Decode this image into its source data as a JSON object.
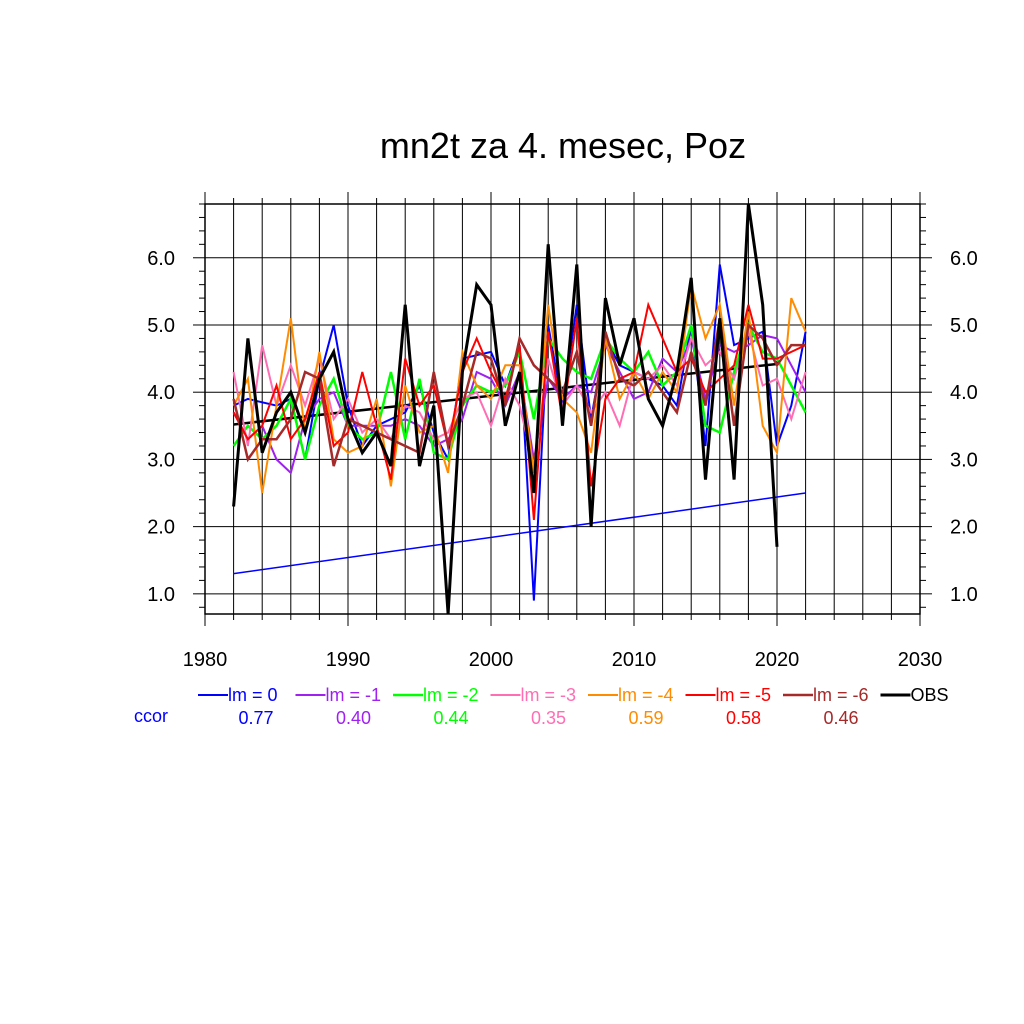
{
  "chart_data": {
    "type": "line",
    "title": "mn2t za 4. mesec, Poz",
    "xlabel": "",
    "ylabel": "",
    "xlim": [
      1980,
      2030
    ],
    "ylim": [
      0.7,
      6.8
    ],
    "x_ticks": [
      1980,
      1990,
      2000,
      2010,
      2020,
      2030
    ],
    "x_tick_labels": [
      "1980",
      "1990",
      "2000",
      "2010",
      "2020",
      "2030"
    ],
    "y_ticks": [
      1.0,
      2.0,
      3.0,
      4.0,
      5.0,
      6.0
    ],
    "y_tick_labels": [
      "1.0",
      "2.0",
      "3.0",
      "4.0",
      "5.0",
      "6.0"
    ],
    "grid": true,
    "ccor_label": "ccor",
    "series": [
      {
        "name": "lm = 0",
        "color": "#0000ff",
        "width": 2,
        "ccor": "0.77",
        "x": [
          1982,
          1983,
          1984,
          1985,
          1986,
          1987,
          1988,
          1989,
          1990,
          1991,
          1992,
          1993,
          1994,
          1995,
          1996,
          1997,
          1998,
          1999,
          2000,
          2001,
          2002,
          2003,
          2004,
          2005,
          2006,
          2007,
          2008,
          2009,
          2010,
          2011,
          2012,
          2013,
          2014,
          2015,
          2016,
          2017,
          2018,
          2019,
          2020,
          2021,
          2022
        ],
        "values": [
          3.8,
          3.9,
          3.85,
          3.8,
          3.9,
          3.0,
          4.2,
          5.0,
          3.8,
          3.2,
          3.5,
          3.6,
          3.7,
          4.1,
          3.4,
          3.0,
          4.5,
          4.55,
          4.6,
          4.1,
          4.7,
          0.9,
          5.0,
          3.8,
          5.3,
          3.6,
          4.8,
          4.4,
          4.3,
          4.2,
          4.1,
          3.8,
          5.0,
          3.2,
          5.9,
          4.7,
          4.8,
          4.9,
          3.2,
          3.8,
          4.9
        ]
      },
      {
        "name": "lm = -1",
        "color": "#a020f0",
        "width": 2,
        "ccor": "0.40",
        "x": [
          1982,
          1983,
          1984,
          1985,
          1986,
          1987,
          1988,
          1989,
          1990,
          1991,
          1992,
          1993,
          1994,
          1995,
          1996,
          1997,
          1998,
          1999,
          2000,
          2001,
          2002,
          2003,
          2004,
          2005,
          2006,
          2007,
          2008,
          2009,
          2010,
          2011,
          2012,
          2013,
          2014,
          2015,
          2016,
          2017,
          2018,
          2019,
          2020,
          2021,
          2022
        ],
        "values": [
          3.7,
          3.3,
          3.5,
          3.0,
          2.8,
          3.6,
          3.9,
          4.0,
          3.5,
          3.5,
          3.5,
          3.5,
          3.6,
          3.5,
          3.2,
          3.3,
          3.6,
          4.3,
          4.2,
          3.8,
          4.3,
          3.0,
          4.2,
          3.9,
          4.1,
          4.0,
          4.7,
          4.3,
          3.9,
          4.0,
          4.5,
          4.3,
          4.8,
          3.9,
          4.7,
          4.6,
          4.7,
          4.85,
          4.8,
          4.4,
          4.0
        ]
      },
      {
        "name": "lm = -2",
        "color": "#00ff00",
        "width": 2.5,
        "ccor": "0.44",
        "x": [
          1982,
          1983,
          1984,
          1985,
          1986,
          1987,
          1988,
          1989,
          1990,
          1991,
          1992,
          1993,
          1994,
          1995,
          1996,
          1997,
          1998,
          1999,
          2000,
          2001,
          2002,
          2003,
          2004,
          2005,
          2006,
          2007,
          2008,
          2009,
          2010,
          2011,
          2012,
          2013,
          2014,
          2015,
          2016,
          2017,
          2018,
          2019,
          2020,
          2021,
          2022
        ],
        "values": [
          3.2,
          3.5,
          3.3,
          3.5,
          3.9,
          3.0,
          3.8,
          4.2,
          3.5,
          3.3,
          3.4,
          4.3,
          3.3,
          4.2,
          3.1,
          3.0,
          3.8,
          4.1,
          4.0,
          4.1,
          4.6,
          3.6,
          4.8,
          4.5,
          4.3,
          4.2,
          4.8,
          4.5,
          4.3,
          4.6,
          4.1,
          4.3,
          5.0,
          3.5,
          3.4,
          4.3,
          5.0,
          4.6,
          4.5,
          4.1,
          3.7
        ]
      },
      {
        "name": "lm = -3",
        "color": "#ff6eb4",
        "width": 2,
        "ccor": "0.35",
        "x": [
          1982,
          1983,
          1984,
          1985,
          1986,
          1987,
          1988,
          1989,
          1990,
          1991,
          1992,
          1993,
          1994,
          1995,
          1996,
          1997,
          1998,
          1999,
          2000,
          2001,
          2002,
          2003,
          2004,
          2005,
          2006,
          2007,
          2008,
          2009,
          2010,
          2011,
          2012,
          2013,
          2014,
          2015,
          2016,
          2017,
          2018,
          2019,
          2020,
          2021,
          2022
        ],
        "values": [
          4.3,
          3.2,
          4.7,
          3.8,
          4.4,
          3.8,
          4.5,
          3.6,
          3.9,
          3.4,
          3.6,
          3.3,
          3.8,
          3.7,
          3.3,
          3.4,
          3.9,
          4.0,
          3.5,
          4.2,
          3.8,
          2.9,
          4.5,
          3.8,
          4.1,
          3.7,
          4.0,
          3.5,
          4.3,
          4.2,
          4.4,
          4.1,
          4.8,
          4.4,
          4.6,
          4.2,
          4.9,
          4.1,
          4.2,
          3.6,
          4.3
        ]
      },
      {
        "name": "lm = -4",
        "color": "#ff8c00",
        "width": 2,
        "ccor": "0.59",
        "x": [
          1982,
          1983,
          1984,
          1985,
          1986,
          1987,
          1988,
          1989,
          1990,
          1991,
          1992,
          1993,
          1994,
          1995,
          1996,
          1997,
          1998,
          1999,
          2000,
          2001,
          2002,
          2003,
          2004,
          2005,
          2006,
          2007,
          2008,
          2009,
          2010,
          2011,
          2012,
          2013,
          2014,
          2015,
          2016,
          2017,
          2018,
          2019,
          2020,
          2021,
          2022
        ],
        "values": [
          3.8,
          4.2,
          2.5,
          3.8,
          5.1,
          3.4,
          4.6,
          3.3,
          3.1,
          3.2,
          3.9,
          2.6,
          4.1,
          3.4,
          3.5,
          2.8,
          4.6,
          4.1,
          3.9,
          4.4,
          4.4,
          2.8,
          5.3,
          3.9,
          3.7,
          3.1,
          4.8,
          3.9,
          4.3,
          3.9,
          4.3,
          4.0,
          5.6,
          4.8,
          5.3,
          3.8,
          5.2,
          3.5,
          3.1,
          5.4,
          4.9
        ]
      },
      {
        "name": "lm = -5",
        "color": "#ff0000",
        "width": 2,
        "ccor": "0.58",
        "x": [
          1982,
          1983,
          1984,
          1985,
          1986,
          1987,
          1988,
          1989,
          1990,
          1991,
          1992,
          1993,
          1994,
          1995,
          1996,
          1997,
          1998,
          1999,
          2000,
          2001,
          2002,
          2003,
          2004,
          2005,
          2006,
          2007,
          2008,
          2009,
          2010,
          2011,
          2012,
          2013,
          2014,
          2015,
          2016,
          2017,
          2018,
          2019,
          2020,
          2021,
          2022
        ],
        "values": [
          3.7,
          3.3,
          3.5,
          4.1,
          3.3,
          3.6,
          4.3,
          3.2,
          3.4,
          4.3,
          3.5,
          2.7,
          4.5,
          3.8,
          4.1,
          3.2,
          4.3,
          4.8,
          4.3,
          3.9,
          4.7,
          2.1,
          4.9,
          3.6,
          5.1,
          2.6,
          3.9,
          4.2,
          4.3,
          5.3,
          4.8,
          4.3,
          4.5,
          4.0,
          4.2,
          4.4,
          5.3,
          4.5,
          4.5,
          4.6,
          4.7
        ]
      },
      {
        "name": "lm = -6",
        "color": "#a52a2a",
        "width": 2.5,
        "ccor": "0.46",
        "x": [
          1982,
          1983,
          1984,
          1985,
          1986,
          1987,
          1988,
          1989,
          1990,
          1991,
          1992,
          1993,
          1994,
          1995,
          1996,
          1997,
          1998,
          1999,
          2000,
          2001,
          2002,
          2003,
          2004,
          2005,
          2006,
          2007,
          2008,
          2009,
          2010,
          2011,
          2012,
          2013,
          2014,
          2015,
          2016,
          2017,
          2018,
          2019,
          2020,
          2021,
          2022
        ],
        "values": [
          3.9,
          3.0,
          3.3,
          3.3,
          3.6,
          4.3,
          4.2,
          2.9,
          3.6,
          3.5,
          3.4,
          3.3,
          3.2,
          3.1,
          4.3,
          3.2,
          3.8,
          4.6,
          4.5,
          3.8,
          4.8,
          4.4,
          4.2,
          4.0,
          4.6,
          3.5,
          4.9,
          4.2,
          4.1,
          4.3,
          4.0,
          3.7,
          4.6,
          3.8,
          5.1,
          3.5,
          5.0,
          4.8,
          4.4,
          4.7,
          4.7
        ]
      },
      {
        "name": "OBS",
        "color": "#000000",
        "width": 3,
        "ccor": "",
        "x": [
          1982,
          1983,
          1984,
          1985,
          1986,
          1987,
          1988,
          1989,
          1990,
          1991,
          1992,
          1993,
          1994,
          1995,
          1996,
          1997,
          1998,
          1999,
          2000,
          2001,
          2002,
          2003,
          2004,
          2005,
          2006,
          2007,
          2008,
          2009,
          2010,
          2011,
          2012,
          2013,
          2014,
          2015,
          2016,
          2017,
          2018,
          2019,
          2020
        ],
        "values": [
          2.3,
          4.8,
          3.1,
          3.7,
          4.0,
          3.4,
          4.2,
          4.6,
          3.6,
          3.1,
          3.4,
          2.9,
          5.3,
          2.9,
          3.8,
          0.7,
          4.3,
          5.6,
          5.3,
          3.5,
          4.3,
          2.5,
          6.2,
          3.5,
          5.9,
          2.0,
          5.4,
          4.4,
          5.1,
          3.9,
          3.5,
          4.3,
          5.7,
          2.7,
          5.1,
          2.7,
          6.8,
          5.3,
          1.7
        ]
      }
    ],
    "trend_lines": [
      {
        "name": "lm = 0 trend",
        "color": "#0000ff",
        "width": 1.5,
        "x": [
          1982,
          2022
        ],
        "values": [
          1.3,
          2.5
        ]
      },
      {
        "name": "OBS trend",
        "color": "#000000",
        "width": 2.5,
        "x": [
          1982,
          2020
        ],
        "values": [
          3.52,
          4.42
        ]
      }
    ]
  }
}
